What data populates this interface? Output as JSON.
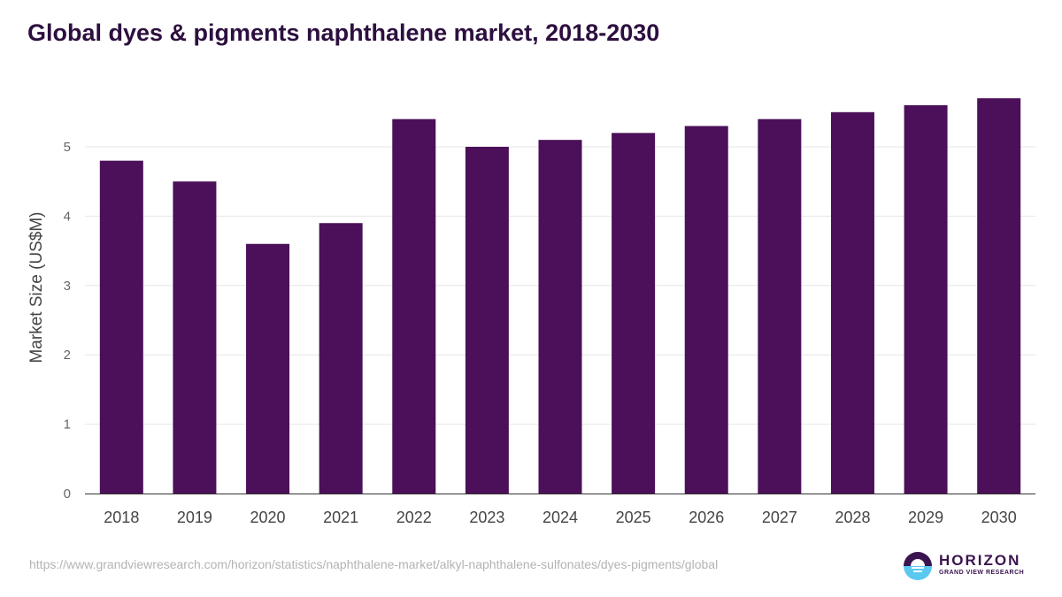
{
  "chart_data": {
    "type": "bar",
    "title": "Global dyes & pigments naphthalene market, 2018-2030",
    "xlabel": "",
    "ylabel": "Market Size (US$M)",
    "categories": [
      "2018",
      "2019",
      "2020",
      "2021",
      "2022",
      "2023",
      "2024",
      "2025",
      "2026",
      "2027",
      "2028",
      "2029",
      "2030"
    ],
    "values": [
      4.8,
      4.5,
      3.6,
      3.9,
      5.4,
      5.0,
      5.1,
      5.2,
      5.3,
      5.4,
      5.5,
      5.6,
      5.7
    ],
    "ylim": [
      0,
      5.7
    ],
    "yticks": [
      "0",
      "1",
      "2",
      "3",
      "4",
      "5"
    ],
    "grid": true,
    "bar_color": "#4b1059"
  },
  "source_url": "https://www.grandviewresearch.com/horizon/statistics/naphthalene-market/alkyl-naphthalene-sulfonates/dyes-pigments/global",
  "logo": {
    "name": "HORIZON",
    "sub": "GRAND VIEW RESEARCH"
  }
}
